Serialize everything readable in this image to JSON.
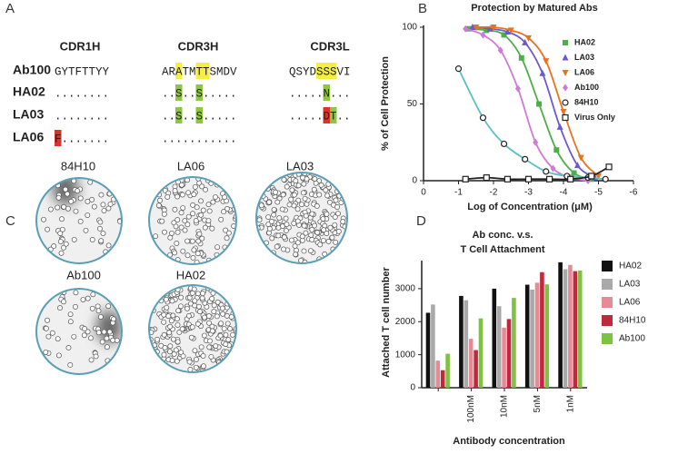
{
  "panel_labels": [
    "A",
    "B",
    "C",
    "D"
  ],
  "alignment": {
    "columns": [
      "CDR1H",
      "CDR3H",
      "CDR3L"
    ],
    "rows": [
      {
        "name": "Ab100",
        "cells": [
          [
            {
              "text": "GYTFTTYY"
            }
          ],
          [
            {
              "text": "AR"
            },
            {
              "text": "A",
              "highlight": "#f4ee3e"
            },
            {
              "text": "TM"
            },
            {
              "text": "TT",
              "highlight": "#f4ee3e"
            },
            {
              "text": "SMDV"
            }
          ],
          [
            {
              "text": "QSYD"
            },
            {
              "text": "SSS",
              "highlight": "#f4ee3e"
            },
            {
              "text": "VI"
            }
          ]
        ]
      },
      {
        "name": "HA02",
        "cells": [
          [
            {
              "text": "........"
            }
          ],
          [
            {
              "text": ".."
            },
            {
              "text": "S",
              "highlight": "#8dc63f"
            },
            {
              "text": ".."
            },
            {
              "text": "S",
              "highlight": "#8dc63f"
            },
            {
              "text": "....."
            }
          ],
          [
            {
              "text": "....."
            },
            {
              "text": "N",
              "highlight": "#8dc63f"
            },
            {
              "text": "..."
            }
          ]
        ]
      },
      {
        "name": "LA03",
        "cells": [
          [
            {
              "text": "........"
            }
          ],
          [
            {
              "text": ".."
            },
            {
              "text": "S",
              "highlight": "#8dc63f"
            },
            {
              "text": ".."
            },
            {
              "text": "S",
              "highlight": "#8dc63f"
            },
            {
              "text": "....."
            }
          ],
          [
            {
              "text": "....."
            },
            {
              "text": "D",
              "highlight": "#d9342b"
            },
            {
              "text": "T",
              "highlight": "#8dc63f"
            },
            {
              "text": ".."
            }
          ]
        ]
      },
      {
        "name": "LA06",
        "cells": [
          [
            {
              "text": "F",
              "highlight": "#d9342b"
            },
            {
              "text": "......."
            }
          ],
          [
            {
              "text": "..........."
            }
          ],
          []
        ]
      }
    ]
  },
  "images": [
    {
      "label": "84H10"
    },
    {
      "label": "LA06"
    },
    {
      "label": "LA03"
    },
    {
      "label": "Ab100"
    },
    {
      "label": "HA02"
    }
  ],
  "chart_data": [
    {
      "type": "line",
      "title": "Protection by Matured Abs",
      "x_label": "Log of Concentration (μM)",
      "y_label": "% of Cell Protection",
      "xlim": [
        0,
        -6
      ],
      "xticks": [
        0,
        -1,
        -2,
        -3,
        -4,
        -5,
        -6
      ],
      "ylim": [
        0,
        100
      ],
      "yticks": [
        0,
        50,
        100
      ],
      "series": [
        {
          "name": "HA02",
          "color": "#4daf4a",
          "marker": "square",
          "x": [
            -1.3,
            -1.8,
            -2.3,
            -2.8,
            -3.3,
            -3.8,
            -4.3,
            -4.8
          ],
          "values": [
            99,
            98,
            95,
            80,
            50,
            20,
            5,
            1
          ]
        },
        {
          "name": "LA03",
          "color": "#6a5acd",
          "marker": "triangle",
          "x": [
            -1.4,
            -1.9,
            -2.4,
            -2.9,
            -3.4,
            -3.9,
            -4.4,
            -4.9
          ],
          "values": [
            100,
            99,
            97,
            90,
            70,
            35,
            10,
            2
          ]
        },
        {
          "name": "LA06",
          "color": "#e8731f",
          "marker": "triangle-down",
          "x": [
            -1.5,
            -2.0,
            -2.5,
            -3.0,
            -3.5,
            -4.0,
            -4.5,
            -5.0
          ],
          "values": [
            100,
            100,
            98,
            93,
            78,
            45,
            15,
            3
          ]
        },
        {
          "name": "Ab100",
          "color": "#d07ad8",
          "marker": "diamond",
          "x": [
            -1.2,
            -1.7,
            -2.2,
            -2.7,
            -3.2,
            -3.7,
            -4.2,
            -4.7
          ],
          "values": [
            99,
            95,
            85,
            60,
            25,
            8,
            2,
            0
          ]
        },
        {
          "name": "84H10",
          "color": "#5bbfc4",
          "marker_color": "#222222",
          "marker": "circle",
          "x": [
            -1.0,
            -1.7,
            -2.3,
            -2.9,
            -3.5,
            -4.1,
            -4.7,
            -5.2
          ],
          "values": [
            73,
            41,
            24,
            14,
            6,
            3,
            2,
            1
          ]
        },
        {
          "name": "Virus Only",
          "color": "#222222",
          "marker": "square-open",
          "x": [
            -1.2,
            -1.8,
            -2.4,
            -3.0,
            -3.6,
            -4.2,
            -4.8,
            -5.3
          ],
          "values": [
            1,
            2,
            1,
            1,
            1,
            1,
            3,
            9
          ]
        }
      ]
    },
    {
      "type": "bar",
      "title": [
        "Ab conc. v.s.",
        "T Cell Attachment"
      ],
      "x_label": "Antibody concentration",
      "y_label": "Attached T cell number",
      "categories": [
        null,
        "100nM",
        "10nM",
        "5nM",
        "1nM"
      ],
      "ylim": [
        0,
        3850
      ],
      "yticks": [
        0,
        1000,
        2000,
        3000
      ],
      "series": [
        {
          "name": "HA02",
          "color": "#111111",
          "values": [
            2270,
            2780,
            3000,
            3120,
            3800
          ]
        },
        {
          "name": "LA03",
          "color": "#a9a9a9",
          "values": [
            2520,
            2650,
            2470,
            2970,
            3590
          ]
        },
        {
          "name": "LA06",
          "color": "#e88a96",
          "values": [
            820,
            1480,
            1820,
            3180,
            3720
          ]
        },
        {
          "name": "84H10",
          "color": "#c0283c",
          "values": [
            530,
            1140,
            2080,
            3500,
            3530
          ]
        },
        {
          "name": "Ab100",
          "color": "#7ec242",
          "values": [
            1030,
            2100,
            2720,
            3130,
            3550
          ]
        }
      ]
    }
  ]
}
